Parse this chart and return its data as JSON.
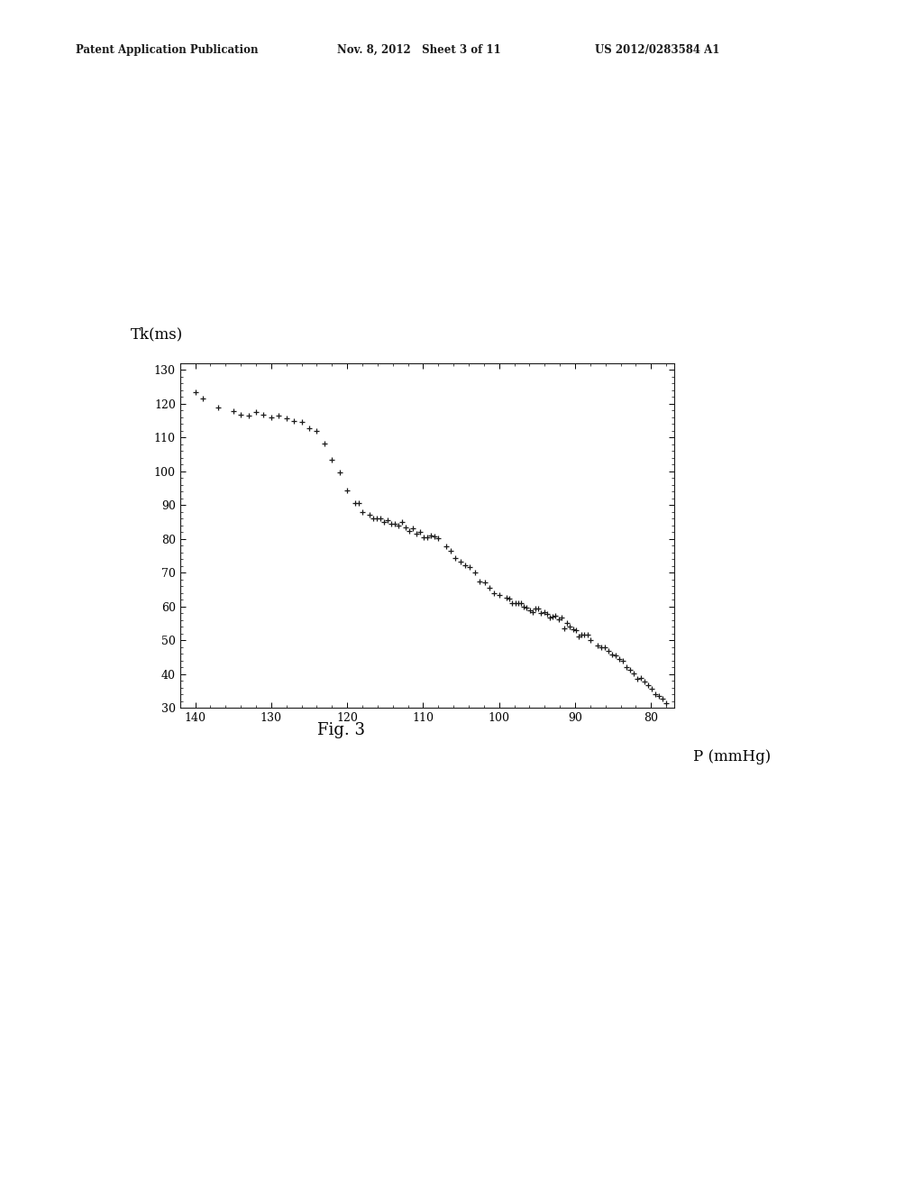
{
  "title_left": "Patent Application Publication",
  "title_center": "Nov. 8, 2012   Sheet 3 of 11",
  "title_right": "US 2012/0283584 A1",
  "fig_label": "Fig. 3",
  "ylabel": "Tk(ms)",
  "xlabel": "P (mmHg)",
  "xticks": [
    140,
    130,
    120,
    110,
    100,
    90,
    80
  ],
  "yticks": [
    30,
    40,
    50,
    60,
    70,
    80,
    90,
    100,
    110,
    120,
    130
  ],
  "background_color": "#ffffff",
  "marker_color": "#1a1a1a",
  "marker": "+",
  "marker_size": 4,
  "marker_linewidth": 0.9
}
